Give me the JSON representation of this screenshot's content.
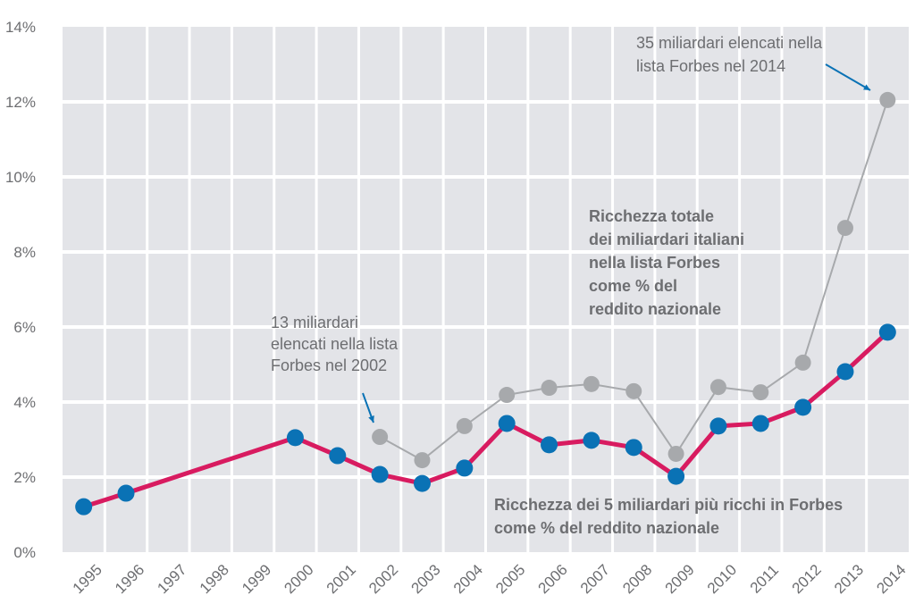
{
  "chart_data": {
    "type": "line",
    "title": "",
    "xlabel": "",
    "ylabel": "",
    "ylim": [
      0,
      14
    ],
    "yticks": [
      "0%",
      "2%",
      "4%",
      "6%",
      "8%",
      "10%",
      "12%",
      "14%"
    ],
    "categories": [
      "1995",
      "1996",
      "1997",
      "1998",
      "1999",
      "2000",
      "2001",
      "2002",
      "2003",
      "2004",
      "2005",
      "2006",
      "2007",
      "2008",
      "2009",
      "2010",
      "2011",
      "2012",
      "2013",
      "2014"
    ],
    "grid": true,
    "series": [
      {
        "key": "top5",
        "color": "#d81b60",
        "marker_color": "#0a72b5",
        "label_lines": [
          "Ricchezza dei 5 miliardari più ricchi in Forbes",
          "come % del reddito nazionale"
        ],
        "points": [
          [
            "1995",
            1.21
          ],
          [
            "1996",
            1.57
          ],
          [
            "2000",
            3.05
          ],
          [
            "2001",
            2.57
          ],
          [
            "2002",
            2.07
          ],
          [
            "2003",
            1.83
          ],
          [
            "2004",
            2.24
          ],
          [
            "2005",
            3.43
          ],
          [
            "2006",
            2.86
          ],
          [
            "2007",
            2.98
          ],
          [
            "2008",
            2.79
          ],
          [
            "2009",
            2.02
          ],
          [
            "2010",
            3.36
          ],
          [
            "2011",
            3.43
          ],
          [
            "2012",
            3.86
          ],
          [
            "2013",
            4.81
          ],
          [
            "2014",
            5.86
          ]
        ]
      },
      {
        "key": "total",
        "color": "#a7a9ac",
        "marker_color": "#a7a9ac",
        "label_lines": [
          "Ricchezza totale",
          "dei miliardari italiani",
          "nella lista Forbes",
          "come % del",
          "reddito nazionale"
        ],
        "points": [
          [
            "2002",
            3.07
          ],
          [
            "2003",
            2.45
          ],
          [
            "2004",
            3.36
          ],
          [
            "2005",
            4.19
          ],
          [
            "2006",
            4.38
          ],
          [
            "2007",
            4.48
          ],
          [
            "2008",
            4.29
          ],
          [
            "2009",
            2.62
          ],
          [
            "2010",
            4.4
          ],
          [
            "2011",
            4.26
          ],
          [
            "2012",
            5.05
          ],
          [
            "2013",
            8.64
          ],
          [
            "2014",
            12.05
          ]
        ]
      }
    ],
    "annotations": [
      {
        "lines": [
          "13 miliardari",
          "elencati nella lista",
          "Forbes nel 2002"
        ],
        "target": "2002",
        "arrow_color": "#0a72b5"
      },
      {
        "lines": [
          "35 miliardari elencati nella",
          "lista Forbes nel 2014"
        ],
        "target": "2014",
        "arrow_color": "#0a72b5"
      }
    ]
  }
}
